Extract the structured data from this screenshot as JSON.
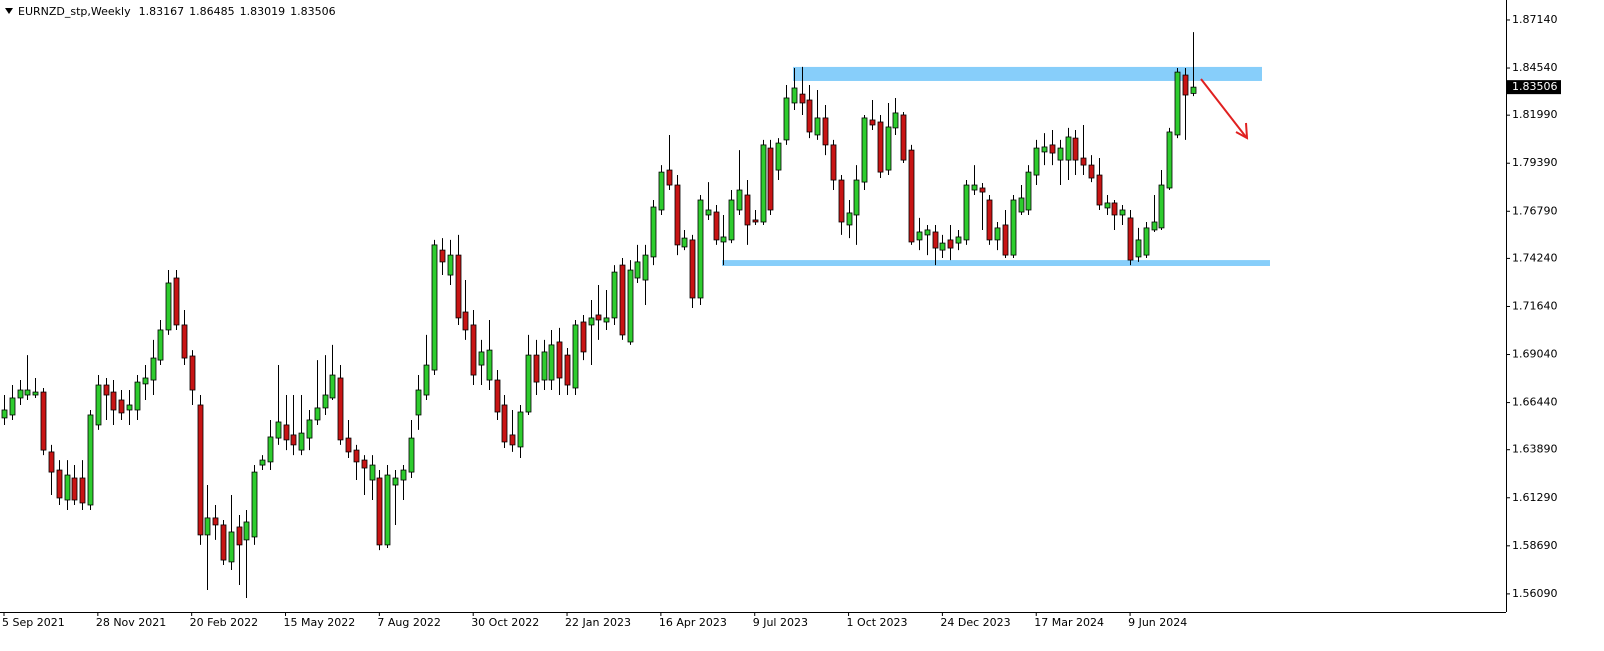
{
  "chart_data": {
    "type": "candlestick",
    "symbol": "EURNZD_stp,Weekly",
    "up_color": "#2ecc2e",
    "down_color": "#c81414",
    "zone_color": "#87cefa",
    "ylim": [
      1.5511,
      1.8795
    ],
    "yticks": [
      {
        "value": 1.8714,
        "label": "1.87140"
      },
      {
        "value": 1.8454,
        "label": "1.84540"
      },
      {
        "value": 1.8199,
        "label": "1.81990"
      },
      {
        "value": 1.7939,
        "label": "1.79390"
      },
      {
        "value": 1.7679,
        "label": "1.76790"
      },
      {
        "value": 1.7424,
        "label": "1.74240"
      },
      {
        "value": 1.7164,
        "label": "1.71640"
      },
      {
        "value": 1.6904,
        "label": "1.69040"
      },
      {
        "value": 1.6644,
        "label": "1.66440"
      },
      {
        "value": 1.6389,
        "label": "1.63890"
      },
      {
        "value": 1.6129,
        "label": "1.61290"
      },
      {
        "value": 1.5869,
        "label": "1.58690"
      },
      {
        "value": 1.5609,
        "label": "1.56090"
      }
    ],
    "zones": [
      {
        "top": 1.846,
        "bottom": 1.8384
      },
      {
        "top": 1.7415,
        "bottom": 1.7383
      }
    ],
    "categories": [
      "5 Sep 2021",
      null,
      null,
      null,
      null,
      null,
      null,
      null,
      null,
      null,
      null,
      null,
      "28 Nov 2021",
      null,
      null,
      null,
      null,
      null,
      null,
      null,
      null,
      null,
      null,
      null,
      "20 Feb 2022",
      null,
      null,
      null,
      null,
      null,
      null,
      null,
      null,
      null,
      null,
      null,
      "15 May 2022",
      null,
      null,
      null,
      null,
      null,
      null,
      null,
      null,
      null,
      null,
      null,
      "7 Aug 2022",
      null,
      null,
      null,
      null,
      null,
      null,
      null,
      null,
      null,
      null,
      null,
      "30 Oct 2022",
      null,
      null,
      null,
      null,
      null,
      null,
      null,
      null,
      null,
      null,
      null,
      "22 Jan 2023",
      null,
      null,
      null,
      null,
      null,
      null,
      null,
      null,
      null,
      null,
      null,
      "16 Apr 2023",
      null,
      null,
      null,
      null,
      null,
      null,
      null,
      null,
      null,
      null,
      null,
      "9 Jul 2023",
      null,
      null,
      null,
      null,
      null,
      null,
      null,
      null,
      null,
      null,
      null,
      "1 Oct 2023",
      null,
      null,
      null,
      null,
      null,
      null,
      null,
      null,
      null,
      null,
      null,
      "24 Dec 2023",
      null,
      null,
      null,
      null,
      null,
      null,
      null,
      null,
      null,
      null,
      null,
      "17 Mar 2024",
      null,
      null,
      null,
      null,
      null,
      null,
      null,
      null,
      null,
      null,
      null,
      "9 Jun 2024",
      null,
      null,
      null,
      null,
      null,
      null,
      null,
      null
    ],
    "candles": [
      [
        1.6561,
        1.6685,
        1.6523,
        1.6604
      ],
      [
        1.6577,
        1.6739,
        1.655,
        1.6669
      ],
      [
        1.6669,
        1.6766,
        1.6631,
        1.6712
      ],
      [
        1.6685,
        1.6901,
        1.6658,
        1.6712
      ],
      [
        1.6685,
        1.6777,
        1.6669,
        1.6701
      ],
      [
        1.6701,
        1.6723,
        1.636,
        1.6387
      ],
      [
        1.6377,
        1.6415,
        1.6144,
        1.6268
      ],
      [
        1.6279,
        1.6333,
        1.609,
        1.6128
      ],
      [
        1.6117,
        1.6333,
        1.6063,
        1.6252
      ],
      [
        1.6236,
        1.6306,
        1.609,
        1.6117
      ],
      [
        1.6236,
        1.6333,
        1.6063,
        1.6101
      ],
      [
        1.609,
        1.6604,
        1.6063,
        1.6577
      ],
      [
        1.6523,
        1.6793,
        1.6496,
        1.6739
      ],
      [
        1.6739,
        1.6777,
        1.655,
        1.6685
      ],
      [
        1.6701,
        1.6766,
        1.6523,
        1.6604
      ],
      [
        1.6658,
        1.6712,
        1.655,
        1.6588
      ],
      [
        1.6604,
        1.6712,
        1.6523,
        1.6631
      ],
      [
        1.6604,
        1.6793,
        1.655,
        1.6755
      ],
      [
        1.6745,
        1.6847,
        1.6658,
        1.6777
      ],
      [
        1.6766,
        1.6983,
        1.6685,
        1.6885
      ],
      [
        1.6874,
        1.7091,
        1.6847,
        1.7037
      ],
      [
        1.7037,
        1.7361,
        1.701,
        1.7291
      ],
      [
        1.7318,
        1.7361,
        1.7037,
        1.7064
      ],
      [
        1.7064,
        1.7145,
        1.6847,
        1.6885
      ],
      [
        1.6896,
        1.6928,
        1.6631,
        1.6712
      ],
      [
        1.6631,
        1.6685,
        1.5874,
        1.5928
      ],
      [
        1.5928,
        1.6198,
        1.563,
        1.602
      ],
      [
        1.602,
        1.609,
        1.5901,
        1.5982
      ],
      [
        1.5982,
        1.6009,
        1.5765,
        1.5792
      ],
      [
        1.5782,
        1.6144,
        1.5738,
        1.5944
      ],
      [
        1.5971,
        1.6036,
        1.5657,
        1.5874
      ],
      [
        1.5901,
        1.6063,
        1.5587,
        1.5998
      ],
      [
        1.5917,
        1.6306,
        1.5874,
        1.6268
      ],
      [
        1.6306,
        1.636,
        1.6279,
        1.6333
      ],
      [
        1.6323,
        1.655,
        1.6279,
        1.6458
      ],
      [
        1.6452,
        1.6847,
        1.6415,
        1.6539
      ],
      [
        1.6523,
        1.6685,
        1.6387,
        1.6442
      ],
      [
        1.6469,
        1.6685,
        1.636,
        1.6415
      ],
      [
        1.6387,
        1.6685,
        1.636,
        1.6479
      ],
      [
        1.6452,
        1.6604,
        1.6387,
        1.655
      ],
      [
        1.655,
        1.6874,
        1.6523,
        1.6615
      ],
      [
        1.6615,
        1.6901,
        1.6577,
        1.6685
      ],
      [
        1.6669,
        1.6956,
        1.6658,
        1.6793
      ],
      [
        1.6777,
        1.6847,
        1.6415,
        1.6442
      ],
      [
        1.6452,
        1.655,
        1.6344,
        1.6377
      ],
      [
        1.6387,
        1.6415,
        1.6225,
        1.6323
      ],
      [
        1.6333,
        1.636,
        1.6144,
        1.629
      ],
      [
        1.6225,
        1.636,
        1.6117,
        1.6306
      ],
      [
        1.6236,
        1.6279,
        1.5846,
        1.5874
      ],
      [
        1.5874,
        1.6306,
        1.5857,
        1.6252
      ],
      [
        1.6198,
        1.6279,
        1.5982,
        1.6236
      ],
      [
        1.6225,
        1.6306,
        1.6117,
        1.6279
      ],
      [
        1.6268,
        1.655,
        1.6236,
        1.6452
      ],
      [
        1.6577,
        1.6793,
        1.6496,
        1.6712
      ],
      [
        1.6685,
        1.701,
        1.6658,
        1.6847
      ],
      [
        1.682,
        1.7524,
        1.6793,
        1.7497
      ],
      [
        1.7469,
        1.7534,
        1.7334,
        1.7405
      ],
      [
        1.7334,
        1.7524,
        1.728,
        1.7442
      ],
      [
        1.7442,
        1.7551,
        1.7064,
        1.7102
      ],
      [
        1.7134,
        1.7307,
        1.6983,
        1.7037
      ],
      [
        1.7064,
        1.7145,
        1.6739,
        1.6793
      ],
      [
        1.6847,
        1.6983,
        1.6739,
        1.6918
      ],
      [
        1.6766,
        1.7091,
        1.6712,
        1.6928
      ],
      [
        1.6766,
        1.682,
        1.655,
        1.6593
      ],
      [
        1.6631,
        1.6685,
        1.6398,
        1.6431
      ],
      [
        1.6469,
        1.6604,
        1.6377,
        1.6415
      ],
      [
        1.6404,
        1.6631,
        1.6344,
        1.6593
      ],
      [
        1.6593,
        1.701,
        1.6577,
        1.6901
      ],
      [
        1.6901,
        1.6983,
        1.6685,
        1.6755
      ],
      [
        1.6766,
        1.6983,
        1.6712,
        1.6918
      ],
      [
        1.6766,
        1.7037,
        1.6712,
        1.6956
      ],
      [
        1.6972,
        1.7048,
        1.6685,
        1.6777
      ],
      [
        1.6901,
        1.6939,
        1.6685,
        1.6739
      ],
      [
        1.6723,
        1.7091,
        1.6685,
        1.7064
      ],
      [
        1.708,
        1.7118,
        1.6874,
        1.6918
      ],
      [
        1.7064,
        1.7199,
        1.6847,
        1.7102
      ],
      [
        1.7118,
        1.728,
        1.6983,
        1.7091
      ],
      [
        1.708,
        1.7253,
        1.7037,
        1.7102
      ],
      [
        1.7102,
        1.7388,
        1.7064,
        1.735
      ],
      [
        1.7388,
        1.7426,
        1.6983,
        1.701
      ],
      [
        1.6972,
        1.7415,
        1.6956,
        1.7361
      ],
      [
        1.7318,
        1.7497,
        1.7291,
        1.7405
      ],
      [
        1.7307,
        1.7497,
        1.7172,
        1.7442
      ],
      [
        1.7432,
        1.774,
        1.7388,
        1.7702
      ],
      [
        1.7686,
        1.7929,
        1.7659,
        1.7891
      ],
      [
        1.7902,
        1.8092,
        1.7794,
        1.7821
      ],
      [
        1.7821,
        1.7875,
        1.7442,
        1.7497
      ],
      [
        1.7486,
        1.7578,
        1.7469,
        1.7534
      ],
      [
        1.7524,
        1.7551,
        1.7156,
        1.721
      ],
      [
        1.721,
        1.7767,
        1.7172,
        1.774
      ],
      [
        1.7659,
        1.7837,
        1.7632,
        1.7686
      ],
      [
        1.7675,
        1.7713,
        1.7497,
        1.7524
      ],
      [
        1.7513,
        1.7659,
        1.7388,
        1.754
      ],
      [
        1.7524,
        1.7794,
        1.7507,
        1.774
      ],
      [
        1.7686,
        1.801,
        1.7659,
        1.7794
      ],
      [
        1.7767,
        1.7848,
        1.7497,
        1.7605
      ],
      [
        1.7632,
        1.7686,
        1.7605,
        1.7621
      ],
      [
        1.7621,
        1.8065,
        1.7605,
        1.8038
      ],
      [
        1.8021,
        1.8065,
        1.7659,
        1.7686
      ],
      [
        1.7902,
        1.8075,
        1.7848,
        1.8048
      ],
      [
        1.8065,
        1.8362,
        1.8038,
        1.8292
      ],
      [
        1.8265,
        1.8454,
        1.8227,
        1.8346
      ],
      [
        1.8313,
        1.846,
        1.82,
        1.8265
      ],
      [
        1.8281,
        1.8362,
        1.8075,
        1.8108
      ],
      [
        1.8092,
        1.8335,
        1.8065,
        1.8184
      ],
      [
        1.8184,
        1.8254,
        1.7983,
        1.8038
      ],
      [
        1.8038,
        1.8065,
        1.7794,
        1.7848
      ],
      [
        1.7848,
        1.7875,
        1.7551,
        1.7621
      ],
      [
        1.7605,
        1.774,
        1.7534,
        1.767
      ],
      [
        1.7659,
        1.7929,
        1.7497,
        1.7848
      ],
      [
        1.7837,
        1.82,
        1.7794,
        1.8184
      ],
      [
        1.8173,
        1.8281,
        1.8119,
        1.8146
      ],
      [
        1.8162,
        1.82,
        1.7859,
        1.7891
      ],
      [
        1.7902,
        1.8265,
        1.7875,
        1.8135
      ],
      [
        1.813,
        1.8292,
        1.8092,
        1.8211
      ],
      [
        1.82,
        1.8216,
        1.794,
        1.7956
      ],
      [
        1.801,
        1.8038,
        1.7497,
        1.7513
      ],
      [
        1.7524,
        1.7643,
        1.7469,
        1.7567
      ],
      [
        1.7551,
        1.7605,
        1.7442,
        1.7578
      ],
      [
        1.7567,
        1.7605,
        1.7388,
        1.748
      ],
      [
        1.7469,
        1.7551,
        1.7426,
        1.7507
      ],
      [
        1.7524,
        1.7605,
        1.7415,
        1.748
      ],
      [
        1.7507,
        1.7578,
        1.7469,
        1.754
      ],
      [
        1.7524,
        1.7848,
        1.7497,
        1.7821
      ],
      [
        1.7794,
        1.7929,
        1.7767,
        1.7821
      ],
      [
        1.7805,
        1.7832,
        1.7578,
        1.7783
      ],
      [
        1.774,
        1.7767,
        1.7497,
        1.7524
      ],
      [
        1.7524,
        1.7621,
        1.7469,
        1.7589
      ],
      [
        1.7605,
        1.7686,
        1.7426,
        1.7442
      ],
      [
        1.7442,
        1.7767,
        1.7426,
        1.774
      ],
      [
        1.7675,
        1.7821,
        1.7659,
        1.7751
      ],
      [
        1.7686,
        1.7929,
        1.7659,
        1.7891
      ],
      [
        1.7875,
        1.8065,
        1.7821,
        1.8021
      ],
      [
        1.8,
        1.8102,
        1.7929,
        1.8027
      ],
      [
        1.8038,
        1.8119,
        1.7929,
        1.7994
      ],
      [
        1.7956,
        1.8065,
        1.7821,
        1.8021
      ],
      [
        1.7956,
        1.813,
        1.7848,
        1.8081
      ],
      [
        1.8075,
        1.8119,
        1.7875,
        1.7956
      ],
      [
        1.7967,
        1.8146,
        1.7875,
        1.7929
      ],
      [
        1.7929,
        1.7983,
        1.7837,
        1.7859
      ],
      [
        1.7875,
        1.7967,
        1.7686,
        1.7713
      ],
      [
        1.7697,
        1.7767,
        1.7659,
        1.7724
      ],
      [
        1.7724,
        1.774,
        1.7578,
        1.7659
      ],
      [
        1.7659,
        1.7713,
        1.7605,
        1.7686
      ],
      [
        1.7643,
        1.7686,
        1.7388,
        1.7415
      ],
      [
        1.7432,
        1.7589,
        1.7405,
        1.7524
      ],
      [
        1.7442,
        1.7621,
        1.7426,
        1.7589
      ],
      [
        1.7578,
        1.7767,
        1.7567,
        1.7621
      ],
      [
        1.7589,
        1.7902,
        1.7578,
        1.7821
      ],
      [
        1.7805,
        1.813,
        1.7794,
        1.8108
      ],
      [
        1.8092,
        1.8454,
        1.8075,
        1.8432
      ],
      [
        1.8416,
        1.8454,
        1.8065,
        1.8308
      ],
      [
        1.83167,
        1.86485,
        1.83019,
        1.83506
      ]
    ]
  }
}
